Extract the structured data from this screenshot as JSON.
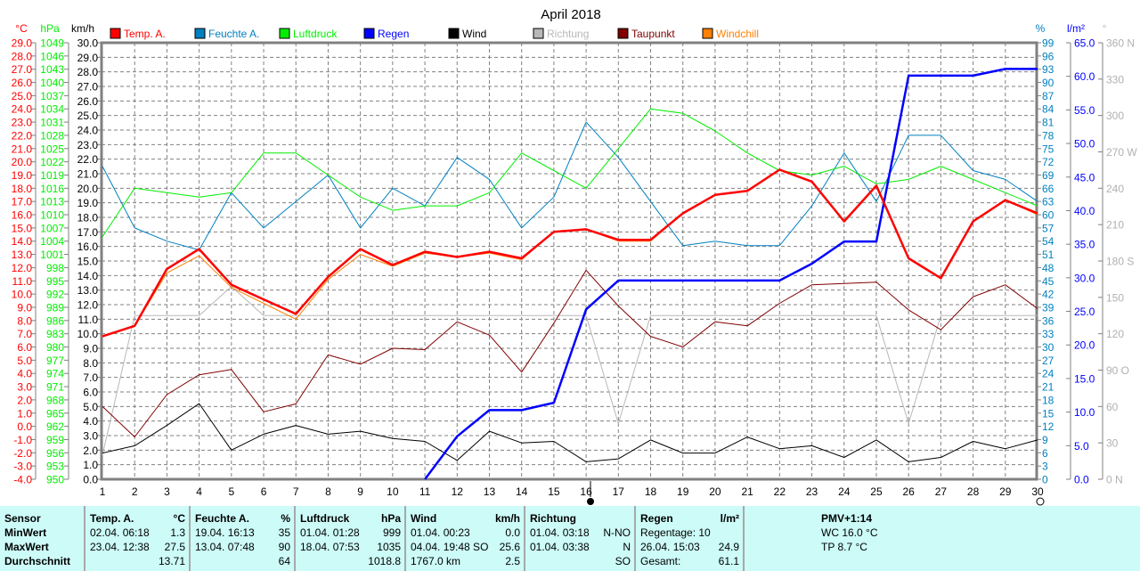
{
  "chart_data": {
    "type": "line",
    "title": "April 2018",
    "x": [
      1,
      2,
      3,
      4,
      5,
      6,
      7,
      8,
      9,
      10,
      11,
      12,
      13,
      14,
      15,
      16,
      17,
      18,
      19,
      20,
      21,
      22,
      23,
      24,
      25,
      26,
      27,
      28,
      29,
      30
    ],
    "grid": true,
    "legend_placement": "top",
    "axes": {
      "temp": {
        "unit": "°C",
        "range": [
          -4,
          29
        ],
        "step": 1,
        "color": "#ff0000"
      },
      "pressure": {
        "unit": "hPa",
        "range": [
          950,
          1049
        ],
        "step": 3,
        "color": "#00ee00"
      },
      "wind": {
        "unit": "km/h",
        "range": [
          0,
          30
        ],
        "step": 1,
        "color": "#000000"
      },
      "humidity": {
        "unit": "%",
        "range": [
          0,
          99
        ],
        "step": 3,
        "color": "#0080c0"
      },
      "rain": {
        "unit": "l/m²",
        "range": [
          0,
          65
        ],
        "step": 5,
        "color": "#0000ff"
      },
      "direction": {
        "unit": "°",
        "range": [
          0,
          360
        ],
        "step": 30,
        "color": "#b0b0b0",
        "labels": [
          "0 N",
          "30",
          "60",
          "90 O",
          "120",
          "150",
          "180 S",
          "210",
          "240",
          "270 W",
          "300",
          "330",
          "360 N"
        ]
      }
    },
    "series": [
      {
        "name": "Temp. A.",
        "axis": "temp",
        "color": "#ff0000",
        "width": 2.5,
        "values": [
          6.8,
          7.6,
          11.9,
          13.4,
          10.7,
          9.6,
          8.5,
          11.3,
          13.4,
          12.2,
          13.2,
          12.8,
          13.2,
          12.7,
          14.7,
          14.9,
          14.1,
          14.1,
          16.1,
          17.5,
          17.8,
          19.4,
          18.5,
          15.5,
          18.2,
          12.7,
          11.2,
          15.5,
          17.1,
          16.1
        ]
      },
      {
        "name": "Feuchte A.",
        "axis": "humidity",
        "color": "#0080c0",
        "width": 1,
        "values": [
          71,
          57,
          54,
          52,
          65,
          57,
          63,
          69,
          57,
          66,
          62,
          73,
          68,
          57,
          64,
          81,
          73,
          63,
          53,
          54,
          53,
          53,
          62,
          74,
          63,
          78,
          78,
          70,
          68,
          63
        ]
      },
      {
        "name": "Luftdruck",
        "axis": "pressure",
        "color": "#00ee00",
        "width": 1,
        "values": [
          1005,
          1016,
          1015,
          1014,
          1015,
          1024,
          1024,
          1019,
          1014,
          1011,
          1012,
          1012,
          1015,
          1024,
          1020,
          1016,
          1025,
          1034,
          1033,
          1029,
          1024,
          1020,
          1019,
          1021,
          1017,
          1018,
          1021,
          1018,
          1015,
          1012
        ]
      },
      {
        "name": "Regen",
        "axis": "rain",
        "color": "#0000ff",
        "width": 2.5,
        "values": [
          null,
          null,
          null,
          null,
          null,
          null,
          null,
          null,
          null,
          null,
          0,
          6.4,
          10.3,
          10.3,
          11.4,
          25.3,
          29.6,
          29.6,
          29.6,
          29.6,
          29.6,
          29.6,
          32.1,
          35.4,
          35.4,
          60.1,
          60.1,
          60.1,
          61.1,
          61.1
        ]
      },
      {
        "name": "Wind",
        "axis": "wind",
        "color": "#000000",
        "width": 1,
        "values": [
          1.8,
          2.3,
          3.7,
          5.2,
          2.0,
          3.1,
          3.7,
          3.1,
          3.3,
          2.8,
          2.6,
          1.3,
          3.3,
          2.5,
          2.6,
          1.2,
          1.4,
          2.7,
          1.8,
          1.8,
          2.9,
          2.1,
          2.3,
          1.5,
          2.7,
          1.2,
          1.5,
          2.6,
          2.1,
          2.7
        ]
      },
      {
        "name": "Richtung",
        "axis": "direction",
        "color": "#b8b8b8",
        "width": 1,
        "values": [
          20,
          135,
          135,
          135,
          159,
          135,
          135,
          135,
          135,
          135,
          135,
          135,
          135,
          135,
          135,
          135,
          46,
          135,
          135,
          135,
          135,
          135,
          135,
          135,
          135,
          46,
          135,
          135,
          135,
          135
        ]
      },
      {
        "name": "Taupunkt",
        "axis": "temp",
        "color": "#800000",
        "width": 1,
        "values": [
          1.5,
          -0.8,
          2.4,
          3.9,
          4.3,
          1.1,
          1.7,
          5.4,
          4.7,
          5.9,
          5.8,
          7.9,
          6.9,
          4.1,
          7.8,
          11.8,
          9.1,
          6.8,
          6.0,
          7.9,
          7.6,
          9.3,
          10.7,
          10.8,
          10.9,
          8.8,
          7.3,
          9.8,
          10.7,
          8.9
        ]
      },
      {
        "name": "Windchill",
        "axis": "temp",
        "color": "#ff8000",
        "width": 1,
        "values": [
          6.8,
          7.6,
          11.6,
          12.9,
          10.5,
          9.3,
          8.1,
          11.1,
          13.0,
          12.1,
          13.1,
          12.8,
          13.1,
          12.6,
          14.7,
          14.9,
          14.0,
          14.0,
          16.1,
          17.5,
          17.8,
          19.4,
          18.5,
          15.5,
          18.2,
          12.7,
          11.2,
          15.5,
          17.1,
          16.0
        ]
      }
    ]
  },
  "stats": {
    "header": {
      "sensor": "Sensor",
      "minwert": "MinWert",
      "maxwert": "MaxWert",
      "durchschnitt": "Durchschnitt"
    },
    "temp": {
      "title": "Temp. A.",
      "unit": "°C",
      "min_time": "02.04.  06:18",
      "min": "1.3",
      "max_time": "23.04.  12:38",
      "max": "27.5",
      "avg": "13.71"
    },
    "humidity": {
      "title": "Feuchte A.",
      "unit": "%",
      "min_time": "19.04.  16:13",
      "min": "35",
      "max_time": "13.04.  07:48",
      "max": "90",
      "avg": "64"
    },
    "pressure": {
      "title": "Luftdruck",
      "unit": "hPa",
      "min_time": "01.04.  01:28",
      "min": "999",
      "max_time": "18.04.  07:53",
      "max": "1035",
      "avg": "1018.8"
    },
    "wind": {
      "title": "Wind",
      "unit": "km/h",
      "min_time": "01.04.  00:23",
      "min": "0.0",
      "max_time": "04.04.  19:48 SO",
      "max": "25.6",
      "distance": "1767.0 km",
      "avg": "2.5"
    },
    "direction": {
      "title": "Richtung",
      "min_time": "01.04.  03:18",
      "min": "N-NO",
      "max_time": "01.04.  03:38",
      "max": "N",
      "avg": "SO"
    },
    "rain": {
      "title": "Regen",
      "unit": "l/m²",
      "days": "Regentage: 10",
      "max_time": "26.04.  15:03",
      "max": "24.9",
      "total_label": "Gesamt:",
      "total": "61.1"
    },
    "pmv": {
      "title": "PMV+1:14",
      "wc": "WC 16.0 °C",
      "tp": "TP 8.7 °C"
    }
  }
}
